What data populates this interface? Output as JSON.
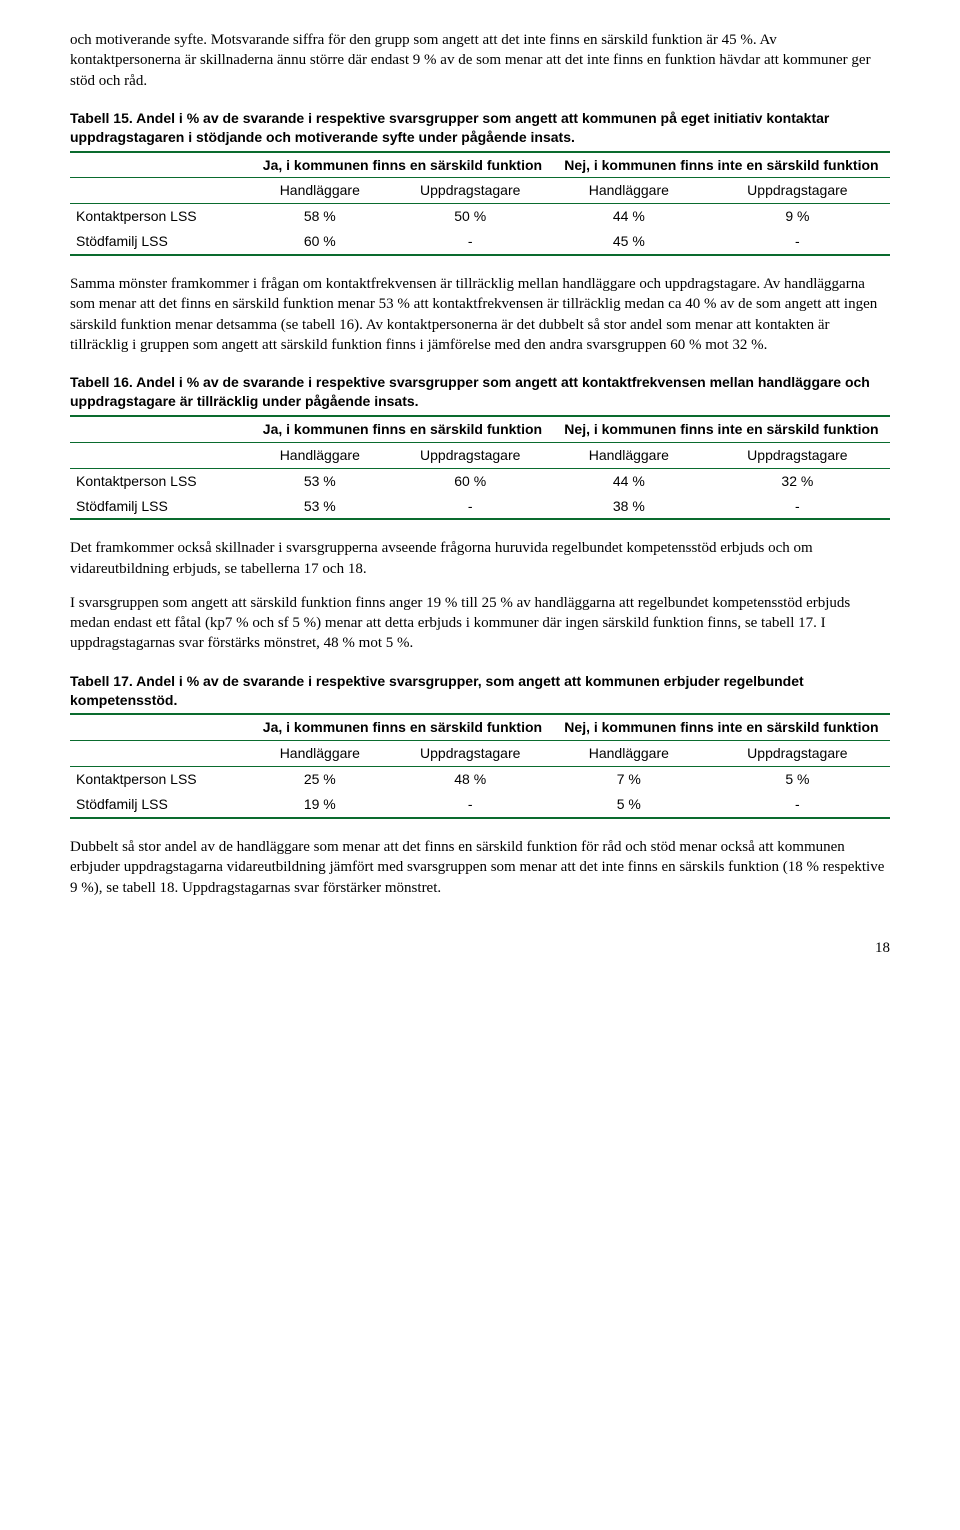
{
  "paragraphs": {
    "intro1": "och motiverande syfte. Motsvarande siffra för den grupp som angett att det inte finns en särskild funktion är 45 %. Av kontaktpersonerna är skillnaderna ännu större där endast 9 % av de som menar att det inte finns en funktion hävdar att kommuner ger stöd och råd.",
    "after15": "Samma mönster framkommer i frågan om kontaktfrekvensen är tillräcklig mellan handläggare och uppdragstagare. Av handläggarna som menar att det finns en särskild funktion menar 53 % att kontaktfrekvensen är tillräcklig medan ca 40 % av de som angett att ingen särskild funktion menar detsamma (se tabell 16). Av kontaktpersonerna är det dubbelt så stor andel som menar att kontakten är tillräcklig i gruppen som angett att särskild funktion finns i jämförelse med den andra svarsgruppen 60 % mot 32 %.",
    "after16a": "Det framkommer också skillnader i svarsgrupperna avseende frågorna huruvida regelbundet kompetensstöd erbjuds och om vidareutbildning erbjuds, se tabellerna 17 och 18.",
    "after16b": "I svarsgruppen som angett att särskild funktion finns anger 19 % till 25 % av handläggarna att regelbundet kompetensstöd erbjuds medan endast ett fåtal (kp7 % och sf 5 %) menar att detta erbjuds i kommuner där ingen särskild funktion finns, se tabell 17. I uppdragstagarnas svar förstärks mönstret, 48 % mot 5 %.",
    "after17": "Dubbelt så stor andel av de handläggare som menar att det finns en särskild funktion för råd och stöd menar också att kommunen erbjuder uppdragstagarna vidareutbildning jämfört med svarsgruppen som menar att det inte finns en särskils funktion (18 % respektive 9 %), se tabell 18. Uppdragstagarnas svar förstärker mönstret."
  },
  "headers": {
    "ja": "Ja, i kommunen finns en särskild funktion",
    "nej": "Nej, i kommunen finns inte en särskild funktion",
    "hand": "Handläggare",
    "uppd": "Uppdragstagare"
  },
  "rowlabels": {
    "kp": "Kontaktperson LSS",
    "sf": "Stödfamilj LSS"
  },
  "table15": {
    "caption": "Tabell 15. Andel i % av de svarande i respektive svarsgrupper som angett att kommunen på eget initiativ kontaktar uppdragstagaren i stödjande och motiverande syfte under pågående insats.",
    "kp": [
      "58 %",
      "50 %",
      "44 %",
      "9 %"
    ],
    "sf": [
      "60 %",
      "-",
      "45 %",
      "-"
    ]
  },
  "table16": {
    "caption": "Tabell 16. Andel i % av de svarande i respektive svarsgrupper som angett att kontaktfrekvensen mellan handläggare och uppdragstagare är tillräcklig under pågående insats.",
    "kp": [
      "53 %",
      "60 %",
      "44 %",
      "32 %"
    ],
    "sf": [
      "53 %",
      "-",
      "38 %",
      "-"
    ]
  },
  "table17": {
    "caption": "Tabell 17. Andel i % av de svarande i respektive svarsgrupper, som angett att kommunen erbjuder regelbundet kompetensstöd.",
    "kp": [
      "25 %",
      "48 %",
      "7 %",
      "5 %"
    ],
    "sf": [
      "19 %",
      "-",
      "5 %",
      "-"
    ]
  },
  "pageNumber": "18"
}
